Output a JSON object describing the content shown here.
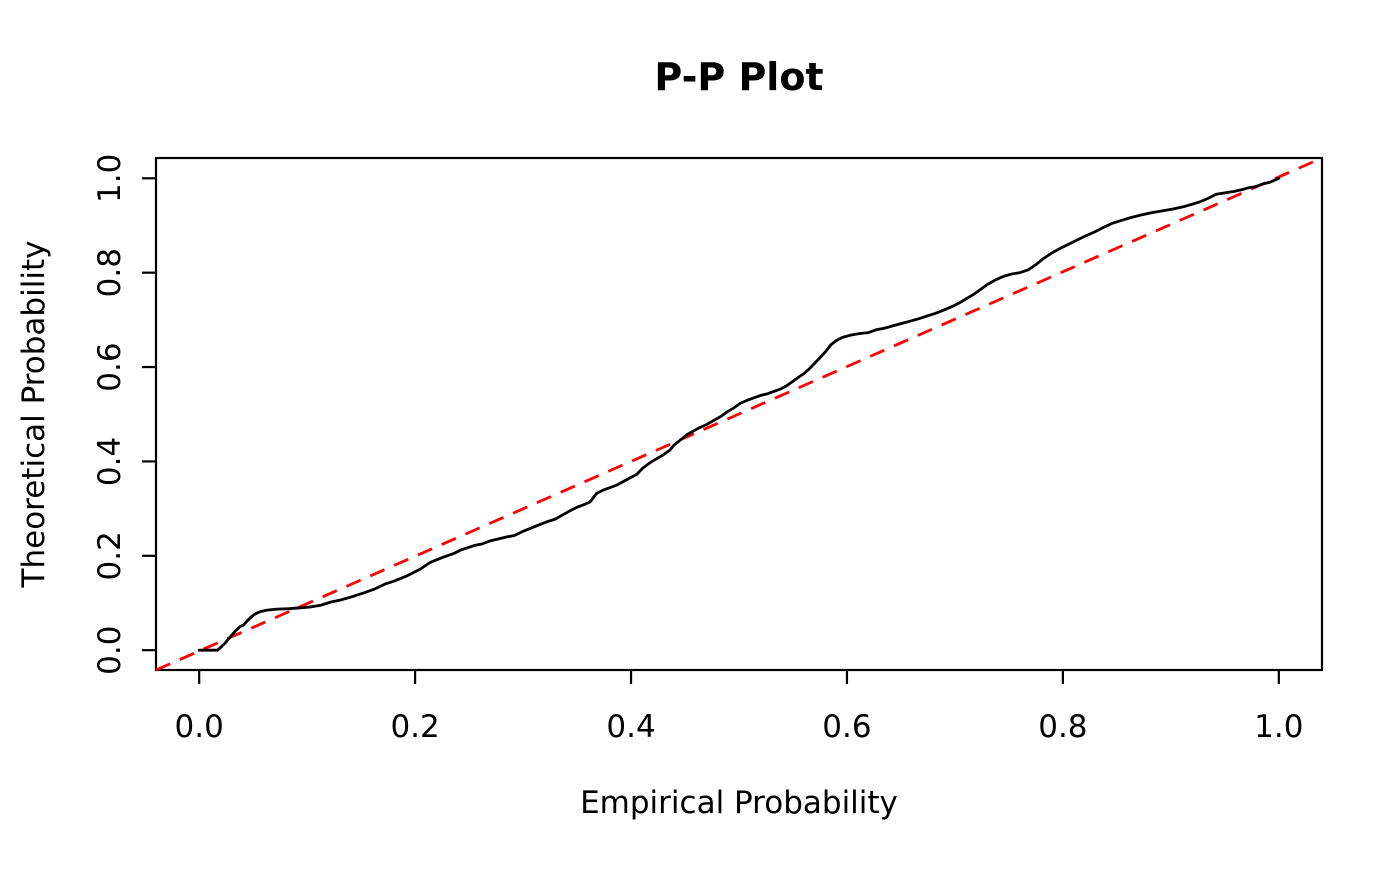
{
  "chart_data": {
    "type": "line",
    "title": "P-P Plot",
    "xlabel": "Empirical Probability",
    "ylabel": "Theoretical Probability",
    "xlim": [
      -0.04,
      1.04
    ],
    "ylim": [
      -0.042,
      1.043
    ],
    "grid": false,
    "legend": "none",
    "x_ticks": {
      "values": [
        0.0,
        0.2,
        0.4,
        0.6,
        0.8,
        1.0
      ],
      "labels": [
        "0.0",
        "0.2",
        "0.4",
        "0.6",
        "0.8",
        "1.0"
      ]
    },
    "y_ticks": {
      "values": [
        0.0,
        0.2,
        0.4,
        0.6,
        0.8,
        1.0
      ],
      "labels": [
        "0.0",
        "0.2",
        "0.4",
        "0.6",
        "0.8",
        "1.0"
      ]
    },
    "series": [
      {
        "name": "empirical-curve",
        "type": "line",
        "color": "#000000",
        "dashed": false,
        "points": [
          [
            0.0,
            0.0
          ],
          [
            0.017,
            0.0
          ],
          [
            0.02,
            0.006
          ],
          [
            0.024,
            0.015
          ],
          [
            0.028,
            0.026
          ],
          [
            0.031,
            0.034
          ],
          [
            0.034,
            0.042
          ],
          [
            0.038,
            0.05
          ],
          [
            0.041,
            0.053
          ],
          [
            0.044,
            0.061
          ],
          [
            0.048,
            0.07
          ],
          [
            0.052,
            0.077
          ],
          [
            0.057,
            0.082
          ],
          [
            0.063,
            0.085
          ],
          [
            0.072,
            0.087
          ],
          [
            0.083,
            0.088
          ],
          [
            0.095,
            0.09
          ],
          [
            0.104,
            0.092
          ],
          [
            0.112,
            0.095
          ],
          [
            0.122,
            0.102
          ],
          [
            0.132,
            0.107
          ],
          [
            0.141,
            0.113
          ],
          [
            0.152,
            0.121
          ],
          [
            0.163,
            0.13
          ],
          [
            0.172,
            0.14
          ],
          [
            0.18,
            0.146
          ],
          [
            0.192,
            0.157
          ],
          [
            0.205,
            0.172
          ],
          [
            0.214,
            0.186
          ],
          [
            0.226,
            0.197
          ],
          [
            0.236,
            0.205
          ],
          [
            0.242,
            0.212
          ],
          [
            0.255,
            0.222
          ],
          [
            0.262,
            0.225
          ],
          [
            0.27,
            0.232
          ],
          [
            0.285,
            0.24
          ],
          [
            0.292,
            0.243
          ],
          [
            0.3,
            0.252
          ],
          [
            0.312,
            0.263
          ],
          [
            0.322,
            0.272
          ],
          [
            0.33,
            0.278
          ],
          [
            0.337,
            0.287
          ],
          [
            0.344,
            0.296
          ],
          [
            0.35,
            0.303
          ],
          [
            0.356,
            0.308
          ],
          [
            0.362,
            0.314
          ],
          [
            0.368,
            0.332
          ],
          [
            0.374,
            0.339
          ],
          [
            0.387,
            0.35
          ],
          [
            0.399,
            0.365
          ],
          [
            0.405,
            0.372
          ],
          [
            0.411,
            0.386
          ],
          [
            0.418,
            0.398
          ],
          [
            0.424,
            0.406
          ],
          [
            0.43,
            0.414
          ],
          [
            0.436,
            0.424
          ],
          [
            0.44,
            0.435
          ],
          [
            0.445,
            0.444
          ],
          [
            0.452,
            0.457
          ],
          [
            0.458,
            0.465
          ],
          [
            0.464,
            0.472
          ],
          [
            0.47,
            0.478
          ],
          [
            0.476,
            0.486
          ],
          [
            0.483,
            0.495
          ],
          [
            0.489,
            0.505
          ],
          [
            0.495,
            0.513
          ],
          [
            0.501,
            0.523
          ],
          [
            0.508,
            0.53
          ],
          [
            0.513,
            0.534
          ],
          [
            0.52,
            0.54
          ],
          [
            0.526,
            0.543
          ],
          [
            0.532,
            0.548
          ],
          [
            0.538,
            0.553
          ],
          [
            0.544,
            0.56
          ],
          [
            0.55,
            0.57
          ],
          [
            0.556,
            0.58
          ],
          [
            0.56,
            0.586
          ],
          [
            0.565,
            0.596
          ],
          [
            0.57,
            0.608
          ],
          [
            0.575,
            0.62
          ],
          [
            0.58,
            0.632
          ],
          [
            0.585,
            0.647
          ],
          [
            0.59,
            0.656
          ],
          [
            0.596,
            0.663
          ],
          [
            0.604,
            0.668
          ],
          [
            0.612,
            0.671
          ],
          [
            0.62,
            0.673
          ],
          [
            0.627,
            0.679
          ],
          [
            0.634,
            0.682
          ],
          [
            0.642,
            0.687
          ],
          [
            0.65,
            0.692
          ],
          [
            0.658,
            0.697
          ],
          [
            0.666,
            0.702
          ],
          [
            0.674,
            0.708
          ],
          [
            0.682,
            0.714
          ],
          [
            0.69,
            0.721
          ],
          [
            0.698,
            0.729
          ],
          [
            0.705,
            0.737
          ],
          [
            0.712,
            0.747
          ],
          [
            0.718,
            0.755
          ],
          [
            0.724,
            0.765
          ],
          [
            0.73,
            0.775
          ],
          [
            0.738,
            0.785
          ],
          [
            0.745,
            0.792
          ],
          [
            0.752,
            0.797
          ],
          [
            0.76,
            0.8
          ],
          [
            0.768,
            0.806
          ],
          [
            0.775,
            0.817
          ],
          [
            0.782,
            0.83
          ],
          [
            0.79,
            0.842
          ],
          [
            0.797,
            0.851
          ],
          [
            0.805,
            0.86
          ],
          [
            0.813,
            0.869
          ],
          [
            0.821,
            0.878
          ],
          [
            0.829,
            0.886
          ],
          [
            0.837,
            0.895
          ],
          [
            0.845,
            0.904
          ],
          [
            0.853,
            0.91
          ],
          [
            0.862,
            0.916
          ],
          [
            0.872,
            0.922
          ],
          [
            0.882,
            0.927
          ],
          [
            0.892,
            0.931
          ],
          [
            0.902,
            0.935
          ],
          [
            0.912,
            0.94
          ],
          [
            0.92,
            0.945
          ],
          [
            0.928,
            0.951
          ],
          [
            0.935,
            0.958
          ],
          [
            0.942,
            0.966
          ],
          [
            0.95,
            0.969
          ],
          [
            0.958,
            0.972
          ],
          [
            0.966,
            0.976
          ],
          [
            0.972,
            0.98
          ],
          [
            0.978,
            0.982
          ],
          [
            0.985,
            0.988
          ],
          [
            0.992,
            0.992
          ],
          [
            1.0,
            1.0
          ]
        ]
      },
      {
        "name": "reference-line",
        "type": "line",
        "color": "#FF0000",
        "dashed": true,
        "points": [
          [
            -0.04,
            -0.042
          ],
          [
            1.04,
            1.043
          ]
        ]
      }
    ]
  },
  "colors": {
    "background": "#FFFFFF",
    "axis": "#000000",
    "curve": "#000000",
    "reference": "#FF0000"
  }
}
